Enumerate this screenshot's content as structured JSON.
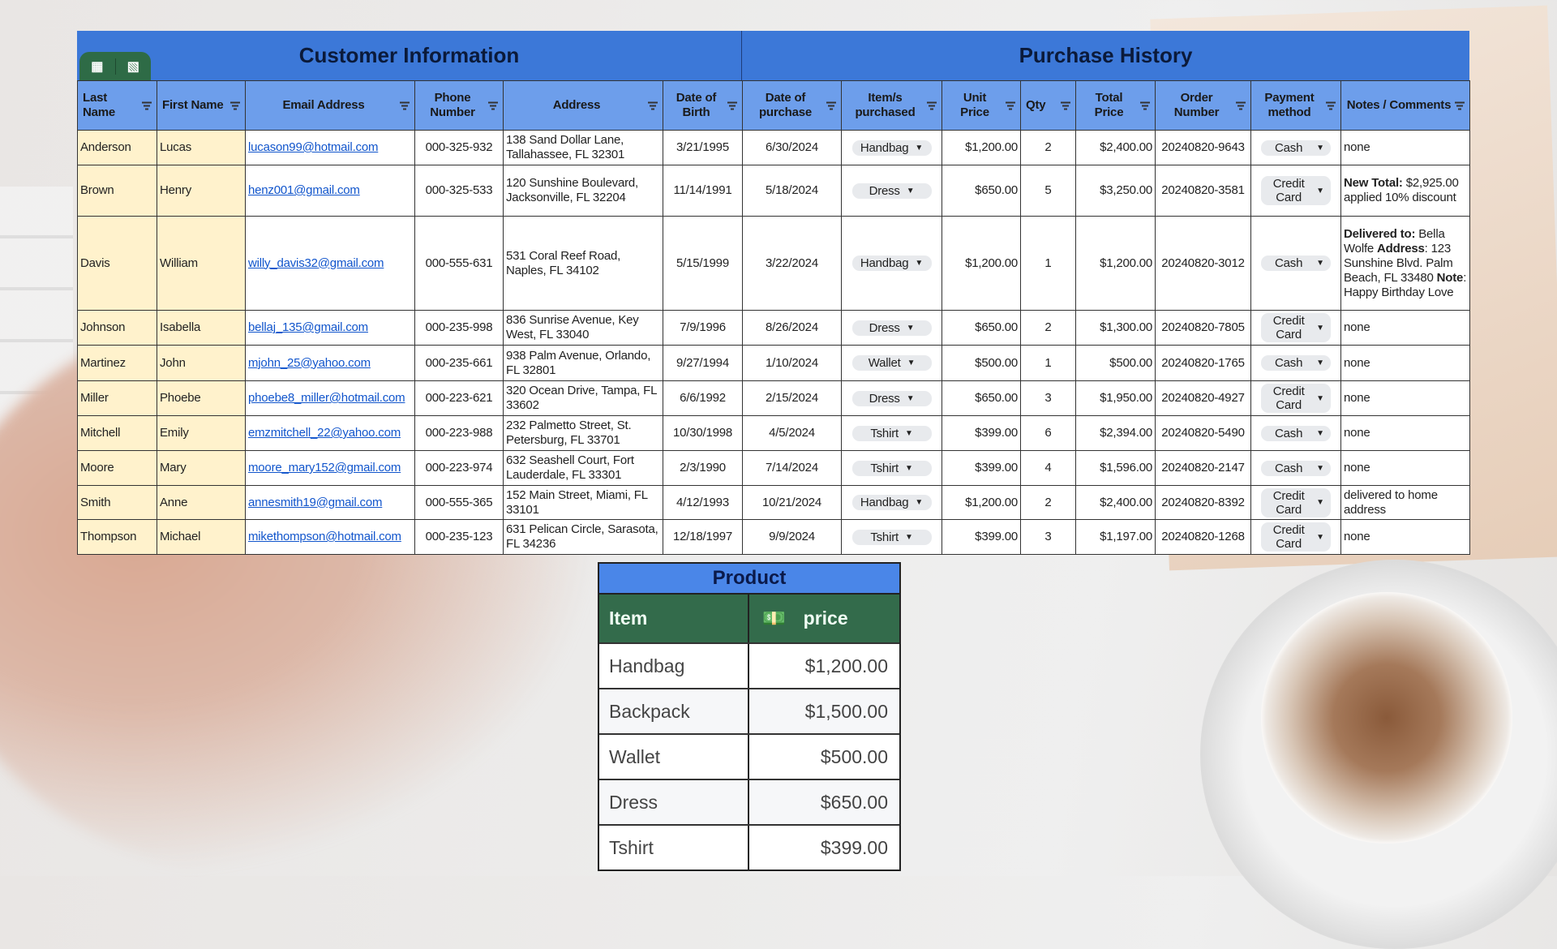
{
  "titles": {
    "customer": "Customer Information",
    "purchase": "Purchase History"
  },
  "icons": {
    "tab1": "table-icon",
    "tab2": "calculator-icon",
    "filter": "filter-icon",
    "dropdown": "dropdown-arrow-icon",
    "money": "money-icon"
  },
  "colors": {
    "title_bg": "#3c78d8",
    "header_bg": "#6d9eeb",
    "name_bg": "#fff2cc",
    "link": "#1155cc",
    "product_header": "#336b4b"
  },
  "headers": [
    "Last Name",
    "First Name",
    "Email Address",
    "Phone Number",
    "Address",
    "Date of Birth",
    "Date of purchase",
    "Item/s purchased",
    "Unit Price",
    "Qty",
    "Total Price",
    "Order Number",
    "Payment method",
    "Notes / Comments"
  ],
  "rows": [
    {
      "last": "Anderson",
      "first": "Lucas",
      "email": "lucason99@hotmail.com",
      "phone": "000-325-932",
      "address": "138 Sand Dollar Lane, Tallahassee, FL 32301",
      "dob": "3/21/1995",
      "dop": "6/30/2024",
      "item": "Handbag",
      "unit": "$1,200.00",
      "qty": "2",
      "total": "$2,400.00",
      "order": "20240820-9643",
      "payment": "Cash",
      "notes": [
        {
          "t": "none"
        }
      ]
    },
    {
      "last": "Brown",
      "first": "Henry",
      "email": "henz001@gmail.com",
      "phone": "000-325-533",
      "address": "120 Sunshine Boulevard, Jacksonville, FL 32204",
      "dob": "11/14/1991",
      "dop": "5/18/2024",
      "item": "Dress",
      "unit": "$650.00",
      "qty": "5",
      "total": "$3,250.00",
      "order": "20240820-3581",
      "payment": "Credit Card",
      "notes": [
        {
          "t": "New Total:",
          "b": true
        },
        {
          "t": " $2,925.00 applied 10% discount"
        }
      ]
    },
    {
      "last": "Davis",
      "first": "William",
      "email": "willy_davis32@gmail.com",
      "phone": "000-555-631",
      "address": "531 Coral Reef Road, Naples, FL 34102",
      "dob": "5/15/1999",
      "dop": "3/22/2024",
      "item": "Handbag",
      "unit": "$1,200.00",
      "qty": "1",
      "total": "$1,200.00",
      "order": "20240820-3012",
      "payment": "Cash",
      "notes": [
        {
          "t": "Delivered to:",
          "b": true
        },
        {
          "t": " Bella Wolfe "
        },
        {
          "t": "Address",
          "b": true
        },
        {
          "t": ": 123 Sunshine Blvd. Palm Beach, FL 33480 "
        },
        {
          "t": "Note",
          "b": true
        },
        {
          "t": ": Happy Birthday Love"
        }
      ]
    },
    {
      "last": "Johnson",
      "first": "Isabella",
      "email": "bellaj_135@gmail.com",
      "phone": "000-235-998",
      "address": "836 Sunrise Avenue, Key West, FL 33040",
      "dob": "7/9/1996",
      "dop": "8/26/2024",
      "item": "Dress",
      "unit": "$650.00",
      "qty": "2",
      "total": "$1,300.00",
      "order": "20240820-7805",
      "payment": "Credit Card",
      "notes": [
        {
          "t": "none"
        }
      ]
    },
    {
      "last": "Martinez",
      "first": "John",
      "email": "mjohn_25@yahoo.com",
      "phone": "000-235-661",
      "address": "938 Palm Avenue, Orlando, FL 32801",
      "dob": "9/27/1994",
      "dop": "1/10/2024",
      "item": "Wallet",
      "unit": "$500.00",
      "qty": "1",
      "total": "$500.00",
      "order": "20240820-1765",
      "payment": "Cash",
      "notes": [
        {
          "t": "none"
        }
      ]
    },
    {
      "last": "Miller",
      "first": "Phoebe",
      "email": "phoebe8_miller@hotmail.com",
      "phone": "000-223-621",
      "address": "320 Ocean Drive, Tampa, FL 33602",
      "dob": "6/6/1992",
      "dop": "2/15/2024",
      "item": "Dress",
      "unit": "$650.00",
      "qty": "3",
      "total": "$1,950.00",
      "order": "20240820-4927",
      "payment": "Credit Card",
      "notes": [
        {
          "t": "none"
        }
      ]
    },
    {
      "last": "Mitchell",
      "first": "Emily",
      "email": "emzmitchell_22@yahoo.com",
      "phone": "000-223-988",
      "address": "232 Palmetto Street, St. Petersburg, FL 33701",
      "dob": "10/30/1998",
      "dop": "4/5/2024",
      "item": "Tshirt",
      "unit": "$399.00",
      "qty": "6",
      "total": "$2,394.00",
      "order": "20240820-5490",
      "payment": "Cash",
      "notes": [
        {
          "t": "none"
        }
      ]
    },
    {
      "last": "Moore",
      "first": "Mary",
      "email": "moore_mary152@gmail.com",
      "phone": "000-223-974",
      "address": "632 Seashell Court, Fort Lauderdale, FL 33301",
      "dob": "2/3/1990",
      "dop": "7/14/2024",
      "item": "Tshirt",
      "unit": "$399.00",
      "qty": "4",
      "total": "$1,596.00",
      "order": "20240820-2147",
      "payment": "Cash",
      "notes": [
        {
          "t": "none"
        }
      ]
    },
    {
      "last": "Smith",
      "first": "Anne",
      "email": "annesmith19@gmail.com",
      "phone": "000-555-365",
      "address": "152 Main Street, Miami, FL 33101",
      "dob": "4/12/1993",
      "dop": "10/21/2024",
      "item": "Handbag",
      "unit": "$1,200.00",
      "qty": "2",
      "total": "$2,400.00",
      "order": "20240820-8392",
      "payment": "Credit Card",
      "notes": [
        {
          "t": "delivered to home address"
        }
      ]
    },
    {
      "last": "Thompson",
      "first": "Michael",
      "email": "mikethompson@hotmail.com",
      "phone": "000-235-123",
      "address": "631 Pelican Circle, Sarasota, FL 34236",
      "dob": "12/18/1997",
      "dop": "9/9/2024",
      "item": "Tshirt",
      "unit": "$399.00",
      "qty": "3",
      "total": "$1,197.00",
      "order": "20240820-1268",
      "payment": "Credit Card",
      "notes": [
        {
          "t": "none"
        }
      ]
    }
  ],
  "product": {
    "title": "Product",
    "header_item": "Item",
    "header_price": "price",
    "items": [
      {
        "item": "Handbag",
        "price": "$1,200.00"
      },
      {
        "item": "Backpack",
        "price": "$1,500.00"
      },
      {
        "item": "Wallet",
        "price": "$500.00"
      },
      {
        "item": "Dress",
        "price": "$650.00"
      },
      {
        "item": "Tshirt",
        "price": "$399.00"
      }
    ]
  }
}
